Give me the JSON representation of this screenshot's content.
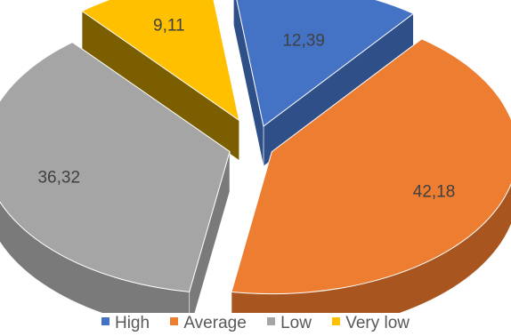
{
  "chart_data": {
    "type": "pie",
    "subtype": "3d-exploded",
    "categories": [
      "High",
      "Average",
      "Low",
      "Very low"
    ],
    "values": [
      12.39,
      42.18,
      36.32,
      9.11
    ],
    "labels": [
      "12,39",
      "42,18",
      "36,32",
      "9,11"
    ],
    "colors": [
      "#4472C4",
      "#ED7D31",
      "#A5A5A5",
      "#FFC000"
    ],
    "side_colors": [
      "#2F4F88",
      "#A85520",
      "#7A7A7A",
      "#7A5E00"
    ],
    "legend_position": "bottom",
    "title": ""
  }
}
